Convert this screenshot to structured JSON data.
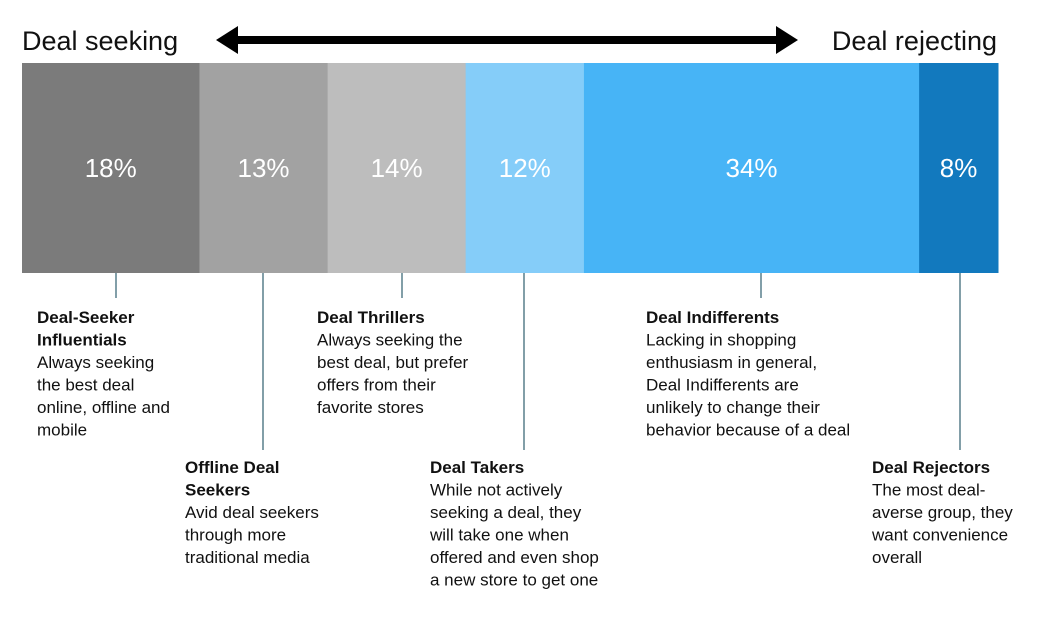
{
  "header": {
    "left_label": "Deal seeking",
    "right_label": "Deal rejecting"
  },
  "colors": {
    "arrow": "#000000",
    "leader_line": "#2f5f6f",
    "percent_text": "#ffffff"
  },
  "chart_data": {
    "type": "bar",
    "stacked": "100%",
    "orientation": "horizontal",
    "categories": [
      "Deal-Seeker Influentials",
      "Offline Deal Seekers",
      "Deal Thrillers",
      "Deal Takers",
      "Deal Indifferents",
      "Deal Rejectors"
    ],
    "values": [
      18,
      13,
      14,
      12,
      34,
      8
    ],
    "value_labels": [
      "18%",
      "13%",
      "14%",
      "12%",
      "34%",
      "8%"
    ],
    "segments": [
      {
        "name_lines": [
          "Deal-Seeker",
          "Influentials"
        ],
        "desc_lines": [
          "Always seeking",
          "the best deal",
          "online, offline and",
          "mobile"
        ],
        "value": 18,
        "label": "18%",
        "color": "#7b7b7b",
        "annotation_row": "upper"
      },
      {
        "name_lines": [
          "Offline Deal",
          "Seekers"
        ],
        "desc_lines": [
          "Avid deal seekers",
          "through more",
          "traditional media"
        ],
        "value": 13,
        "label": "13%",
        "color": "#a2a2a2",
        "annotation_row": "lower"
      },
      {
        "name_lines": [
          "Deal Thrillers"
        ],
        "desc_lines": [
          "Always seeking the",
          "best deal, but prefer",
          "offers from their",
          "favorite stores"
        ],
        "value": 14,
        "label": "14%",
        "color": "#bdbdbd",
        "annotation_row": "upper"
      },
      {
        "name_lines": [
          "Deal Takers"
        ],
        "desc_lines": [
          "While not actively",
          "seeking a deal, they",
          "will take one when",
          "offered and even shop",
          "a new store to get one"
        ],
        "value": 12,
        "label": "12%",
        "color": "#85cdf9",
        "annotation_row": "lower"
      },
      {
        "name_lines": [
          "Deal Indifferents"
        ],
        "desc_lines": [
          "Lacking in shopping",
          "enthusiasm in general,",
          "Deal Indifferents are",
          "unlikely to change their",
          "behavior because of a deal"
        ],
        "value": 34,
        "label": "34%",
        "color": "#47b4f6",
        "annotation_row": "upper"
      },
      {
        "name_lines": [
          "Deal Rejectors"
        ],
        "desc_lines": [
          "The most deal-",
          "averse group, they",
          "want convenience",
          "overall"
        ],
        "value": 8,
        "label": "8%",
        "color": "#1279be",
        "annotation_row": "lower"
      }
    ]
  }
}
